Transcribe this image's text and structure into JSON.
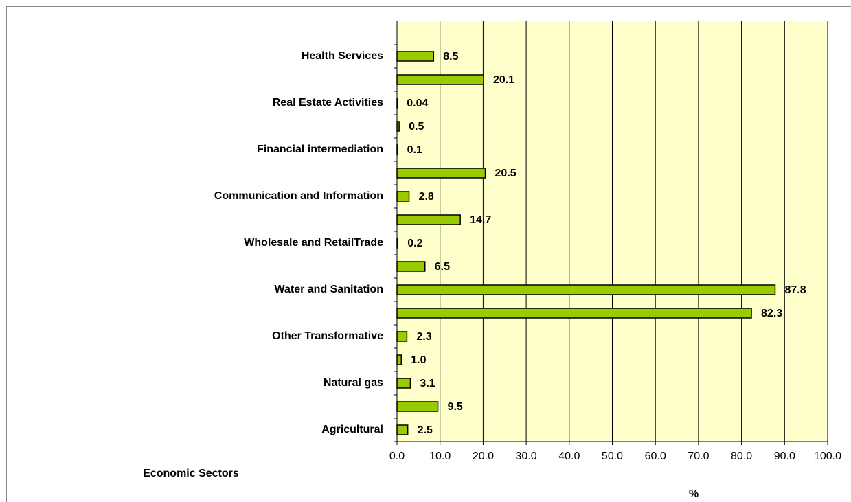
{
  "chart_data": {
    "type": "barh",
    "categories": [
      "Agricultural",
      null,
      "Natural gas",
      null,
      "Other Transformative",
      null,
      "Water and Sanitation",
      null,
      "Wholesale and RetailTrade",
      null,
      "Communication and Information",
      null,
      "Financial intermediation",
      null,
      "Real Estate Activities",
      null,
      "Health Services"
    ],
    "values": [
      2.5,
      9.5,
      3.1,
      1.0,
      2.3,
      82.3,
      87.8,
      6.5,
      0.2,
      14.7,
      2.8,
      20.5,
      0.1,
      0.5,
      0.04,
      20.1,
      8.5
    ],
    "value_labels": [
      "2.5",
      "9.5",
      "3.1",
      "1.0",
      "2.3",
      "82.3",
      "87.8",
      "6.5",
      "0.2",
      "14.7",
      "2.8",
      "20.5",
      "0.1",
      "0.5",
      "0.04",
      "20.1",
      "8.5"
    ],
    "color": "#99cc00",
    "xlim": [
      0,
      100
    ],
    "xticks": [
      {
        "value": 0,
        "label": "0.0"
      },
      {
        "value": 10,
        "label": "10.0"
      },
      {
        "value": 20,
        "label": "20.0"
      },
      {
        "value": 30,
        "label": "30.0"
      },
      {
        "value": 40,
        "label": "40.0"
      },
      {
        "value": 50,
        "label": "50.0"
      },
      {
        "value": 60,
        "label": "60.0"
      },
      {
        "value": 70,
        "label": "70.0"
      },
      {
        "value": 80,
        "label": "80.0"
      },
      {
        "value": 90,
        "label": "90.0"
      },
      {
        "value": 100,
        "label": "100.0"
      }
    ],
    "grid": true,
    "xlabel": "%",
    "ylabel": "Economic Sectors"
  }
}
